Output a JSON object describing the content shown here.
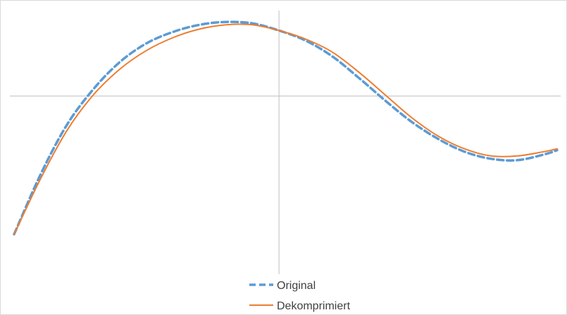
{
  "chart_data": {
    "type": "line",
    "title": "",
    "xlabel": "",
    "ylabel": "",
    "xlim": [
      -1,
      1.05
    ],
    "ylim": [
      -1.25,
      0.6
    ],
    "grid": false,
    "axes_lines": true,
    "tick_labels": false,
    "legend_position": "bottom",
    "series": [
      {
        "name": "Original",
        "style": "dashed",
        "color": "#5b9bd5",
        "x": [
          -1.0,
          -0.9,
          -0.8,
          -0.7,
          -0.6,
          -0.5,
          -0.4,
          -0.3,
          -0.2,
          -0.1,
          0.0,
          0.1,
          0.2,
          0.3,
          0.4,
          0.5,
          0.6,
          0.7,
          0.8,
          0.9,
          1.0,
          1.05
        ],
        "y": [
          -0.97,
          -0.55,
          -0.2,
          0.05,
          0.24,
          0.37,
          0.45,
          0.5,
          0.52,
          0.51,
          0.46,
          0.39,
          0.28,
          0.13,
          -0.03,
          -0.18,
          -0.3,
          -0.39,
          -0.44,
          -0.45,
          -0.41,
          -0.38
        ]
      },
      {
        "name": "Dekomprimiert",
        "style": "solid",
        "color": "#ed7d31",
        "x": [
          -1.0,
          -0.9,
          -0.8,
          -0.7,
          -0.6,
          -0.5,
          -0.4,
          -0.3,
          -0.2,
          -0.1,
          0.0,
          0.1,
          0.2,
          0.3,
          0.4,
          0.5,
          0.6,
          0.7,
          0.8,
          0.9,
          1.0,
          1.05
        ],
        "y": [
          -0.97,
          -0.58,
          -0.24,
          0.01,
          0.19,
          0.32,
          0.41,
          0.47,
          0.5,
          0.5,
          0.46,
          0.4,
          0.31,
          0.17,
          0.01,
          -0.15,
          -0.28,
          -0.37,
          -0.42,
          -0.42,
          -0.39,
          -0.37
        ]
      }
    ]
  }
}
